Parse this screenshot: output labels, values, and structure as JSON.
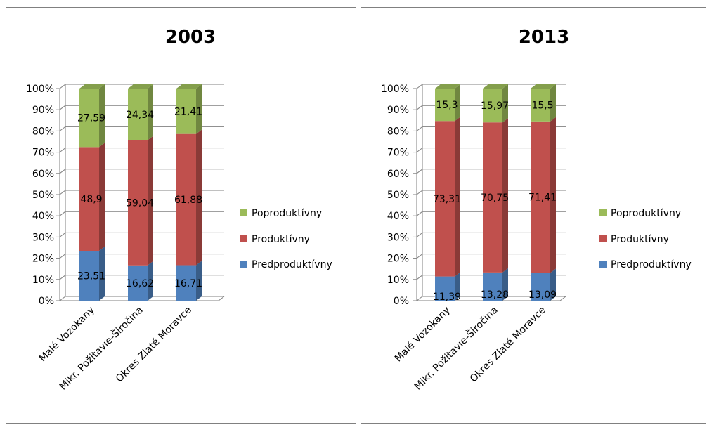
{
  "chart_data": [
    {
      "type": "bar",
      "stacked": true,
      "percent_stacked": true,
      "three_d": true,
      "title": "2003",
      "categories": [
        "Malé Vozokany",
        "Mikr. Požitavie-Širočina",
        "Okres Zlaté Moravce"
      ],
      "series": [
        {
          "name": "Predproduktívny",
          "color": "#4f81bd",
          "values": [
            23.51,
            16.62,
            16.71
          ]
        },
        {
          "name": "Produktívny",
          "color": "#c0504d",
          "values": [
            48.9,
            59.04,
            61.88
          ]
        },
        {
          "name": "Poproduktívny",
          "color": "#9bbb59",
          "values": [
            27.59,
            24.34,
            21.41
          ]
        }
      ],
      "value_labels": [
        [
          "23,51",
          "16,62",
          "16,71"
        ],
        [
          "48,9",
          "59,04",
          "61,88"
        ],
        [
          "27,59",
          "24,34",
          "21,41"
        ]
      ],
      "y_ticks": [
        "0%",
        "10%",
        "20%",
        "30%",
        "40%",
        "50%",
        "60%",
        "70%",
        "80%",
        "90%",
        "100%"
      ],
      "ylim": [
        0,
        100
      ],
      "grid": true,
      "legend": "right"
    },
    {
      "type": "bar",
      "stacked": true,
      "percent_stacked": true,
      "three_d": true,
      "title": "2013",
      "categories": [
        "Malé Vozokany",
        "Mikr. Požitavie-Širočina",
        "Okres Zlaté Moravce"
      ],
      "series": [
        {
          "name": "Predproduktívny",
          "color": "#4f81bd",
          "values": [
            11.39,
            13.28,
            13.09
          ]
        },
        {
          "name": "Produktívny",
          "color": "#c0504d",
          "values": [
            73.31,
            70.75,
            71.41
          ]
        },
        {
          "name": "Poproduktívny",
          "color": "#9bbb59",
          "values": [
            15.3,
            15.97,
            15.5
          ]
        }
      ],
      "value_labels": [
        [
          "11,39",
          "13,28",
          "13,09"
        ],
        [
          "73,31",
          "70,75",
          "71,41"
        ],
        [
          "15,3",
          "15,97",
          "15,5"
        ]
      ],
      "y_ticks": [
        "0%",
        "10%",
        "20%",
        "30%",
        "40%",
        "50%",
        "60%",
        "70%",
        "80%",
        "90%",
        "100%"
      ],
      "ylim": [
        0,
        100
      ],
      "grid": true,
      "legend": "right"
    }
  ]
}
